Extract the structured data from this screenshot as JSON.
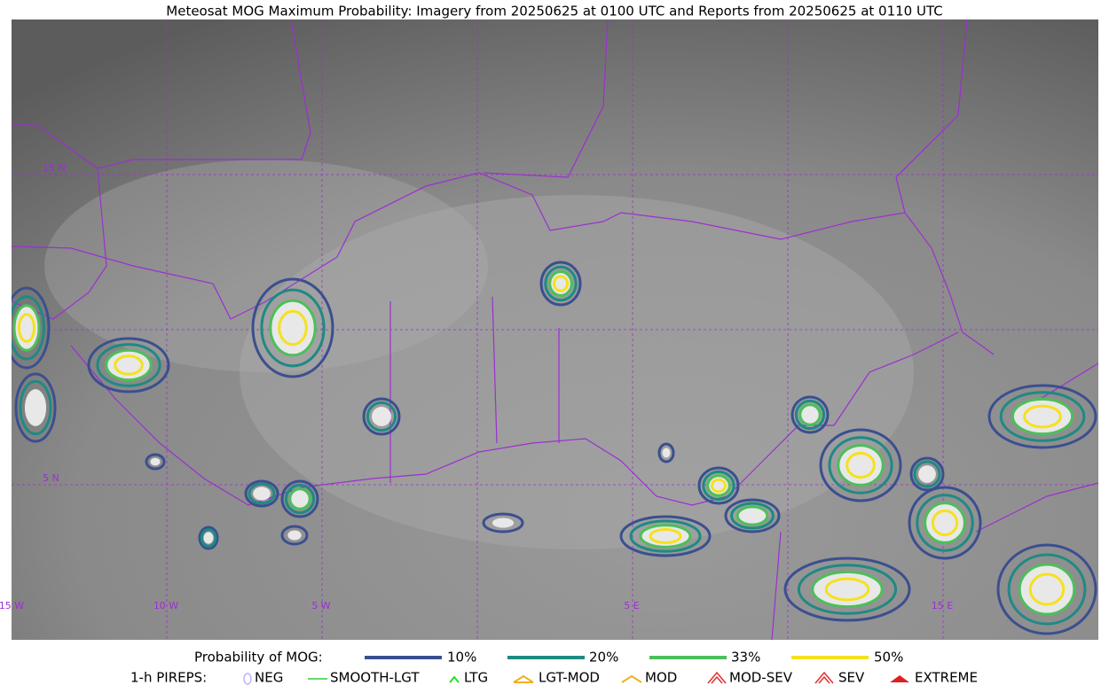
{
  "title": "Meteosat MOG Maximum Probability: Imagery from 20250625 at 0100 UTC and Reports from 20250625 at 0110 UTC",
  "lat_labels": [
    "15 N",
    "5 N"
  ],
  "lon_labels": [
    "15 W",
    "10 W",
    "5 W",
    "5 E",
    "15 E"
  ],
  "legend": {
    "probability_title": "Probability of MOG:",
    "probability_levels": [
      "10%",
      "20%",
      "33%",
      "50%"
    ],
    "pireps_title": "1-h PIREPS:",
    "pireps": [
      "NEG",
      "SMOOTH-LGT",
      "LTG",
      "LGT-MOD",
      "MOD",
      "MOD-SEV",
      "SEV",
      "EXTREME"
    ]
  }
}
